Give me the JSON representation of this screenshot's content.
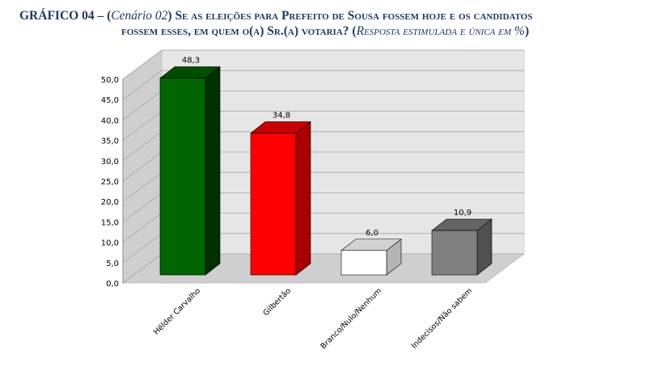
{
  "title": {
    "prefix": "GRÁFICO 04 – (",
    "scenario": "Cenário 02",
    "question_line1": ") Se as eleições para Prefeito de Sousa fossem hoje e os candidatos",
    "question_line2": "fossem esses, em quem o(a) Sr.(a) votaria?",
    "paren_open": " (",
    "note": "Resposta estimulada e única em %",
    "paren_close": ")"
  },
  "chart_data": {
    "type": "bar",
    "categories": [
      "Hélder Carvalho",
      "Gilbertão",
      "Branco/Nulo/Nenhum",
      "Indecisos/Não sabem"
    ],
    "values": [
      48.3,
      34.8,
      6.0,
      10.9
    ],
    "data_labels": [
      "48,3",
      "34,8",
      "6,0",
      "10,9"
    ],
    "ylim": [
      0,
      50
    ],
    "yticks": [
      "0,0",
      "5,0",
      "10,0",
      "15,0",
      "20,0",
      "25,0",
      "30,0",
      "35,0",
      "40,0",
      "45,0",
      "50,0"
    ],
    "grid": true,
    "colors": {
      "front": [
        "#006400",
        "#ff0000",
        "#ffffff",
        "#808080"
      ],
      "side": [
        "#003200",
        "#a80000",
        "#b4b4b4",
        "#505050"
      ],
      "top": [
        "#004d00",
        "#c80000",
        "#d2d2d2",
        "#646464"
      ]
    }
  }
}
